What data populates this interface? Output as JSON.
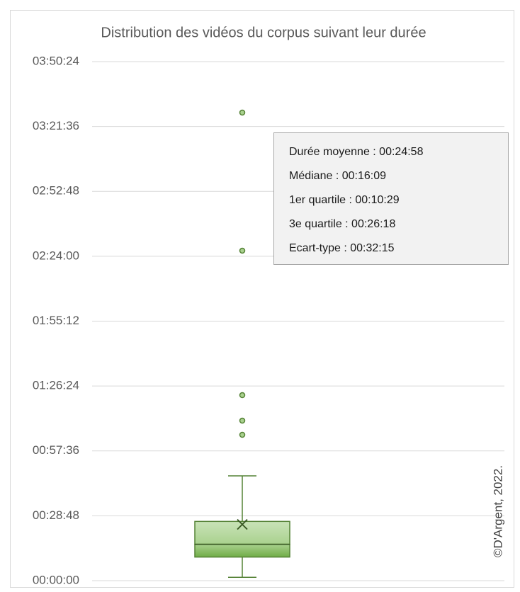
{
  "chart_data": {
    "type": "box",
    "title": "Distribution des vidéos du corpus suivant leur durée",
    "ylim": [
      0,
      13824
    ],
    "yticks": [
      {
        "value": 0,
        "label": "00:00:00"
      },
      {
        "value": 1728,
        "label": "00:28:48"
      },
      {
        "value": 3456,
        "label": "00:57:36"
      },
      {
        "value": 5184,
        "label": "01:26:24"
      },
      {
        "value": 6912,
        "label": "01:55:12"
      },
      {
        "value": 8640,
        "label": "02:24:00"
      },
      {
        "value": 10368,
        "label": "02:52:48"
      },
      {
        "value": 12096,
        "label": "03:21:36"
      },
      {
        "value": 13824,
        "label": "03:50:24"
      }
    ],
    "grid": true,
    "color": "#548235",
    "series": [
      {
        "whisker_low": 90,
        "q1": 629,
        "median": 969,
        "q3": 1578,
        "whisker_high": 2791,
        "mean": 1498,
        "outliers": [
          3885,
          4262,
          4941,
          8789,
          12466
        ]
      }
    ],
    "annotations": [
      "Durée moyenne : 00:24:58",
      "Médiane : 00:16:09",
      "1er quartile :  00:10:29",
      "3e quartile : 00:26:18",
      "Ecart-type : 00:32:15"
    ],
    "watermark": "©D'Argent, 2022."
  }
}
